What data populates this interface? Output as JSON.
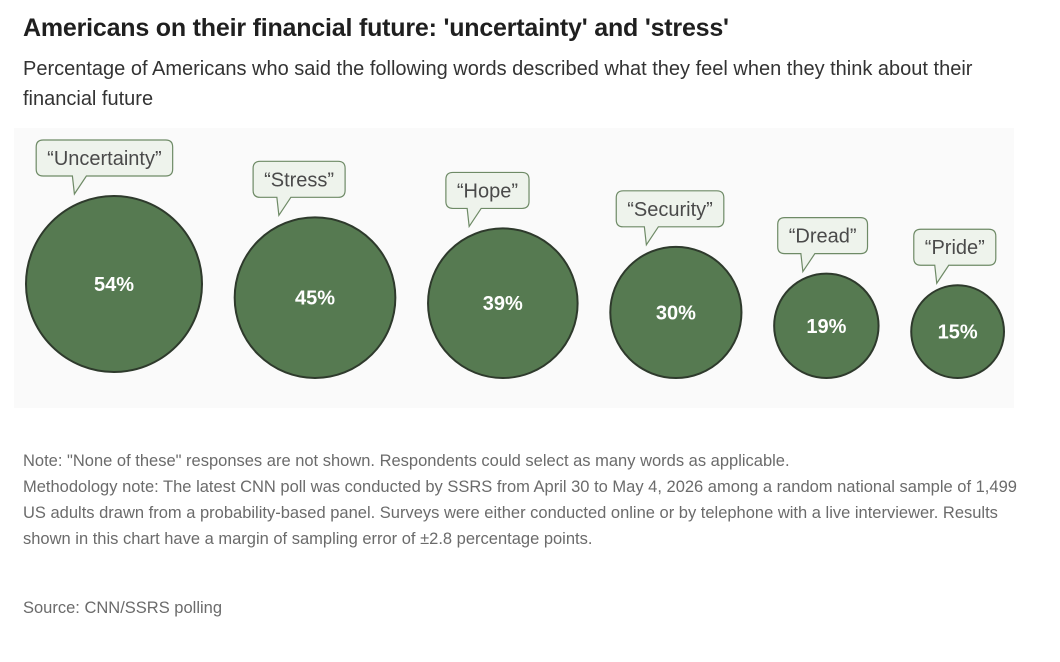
{
  "header": {
    "title": "Americans on their financial future: 'uncertainty' and 'stress'",
    "subtitle": "Percentage of Americans who said the following words described what they feel when they think about their financial future"
  },
  "chart_data": {
    "type": "bubble",
    "categories": [
      "“Uncertainty”",
      "“Stress”",
      "“Hope”",
      "“Security”",
      "“Dread”",
      "“Pride”"
    ],
    "values": [
      54,
      45,
      39,
      30,
      19,
      15
    ],
    "value_labels": [
      "54%",
      "45%",
      "39%",
      "30%",
      "19%",
      "15%"
    ],
    "unit": "%",
    "colors": {
      "bubble_fill": "#567a51",
      "bubble_stroke": "#2e3a2c",
      "callout_fill": "#eef3ec",
      "callout_stroke": "#6e8a66",
      "value_text": "#ffffff"
    }
  },
  "footer": {
    "note": "Note: \"None of these\" responses are not shown. Respondents could select as many words as applicable.",
    "methodology": "Methodology note: The latest CNN poll was conducted by SSRS from April 30 to May 4, 2026 among a random national sample of 1,499 US adults drawn from a probability-based panel. Surveys were either conducted online or by telephone with a live interviewer. Results shown in this chart have a margin of sampling error of ±2.8 percentage points.",
    "source": "Source: CNN/SSRS polling"
  }
}
